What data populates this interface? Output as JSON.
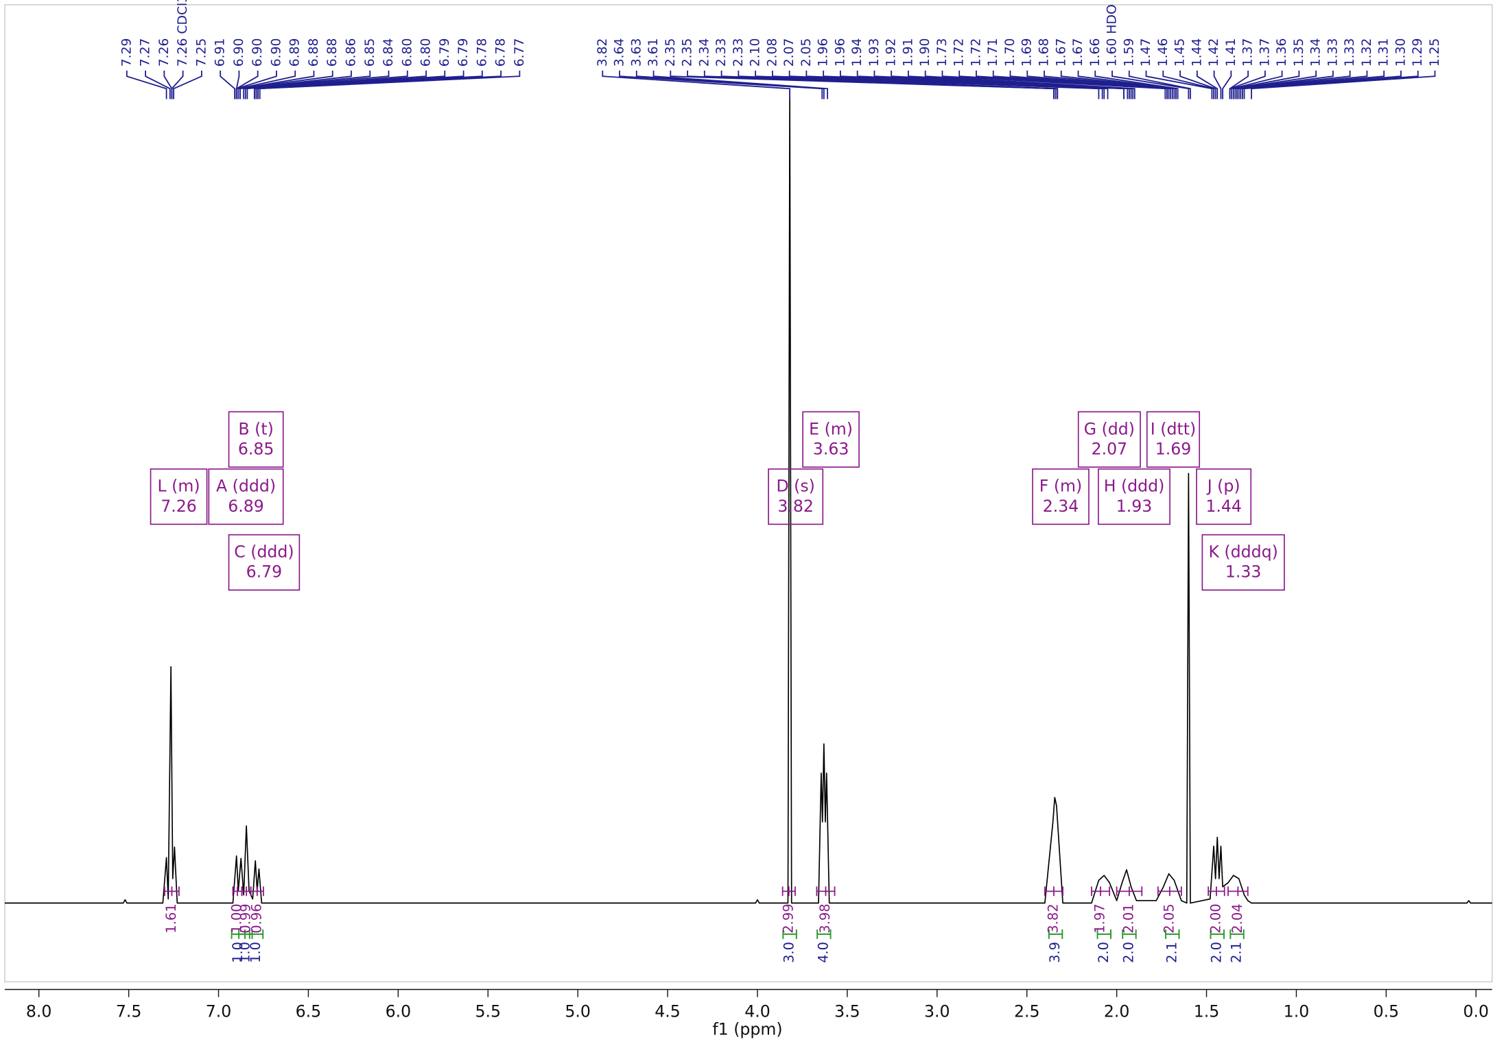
{
  "chart_data": {
    "type": "nmr",
    "x_label": "f1 (ppm)",
    "xlim": [
      8.19,
      -0.09
    ],
    "ylim": [
      -9.7,
      110.6
    ],
    "xticks": [
      {
        "value": 8,
        "label": "8.0"
      },
      7.5,
      {
        "value": 7,
        "label": "7.0"
      },
      6.5,
      {
        "value": 6,
        "label": "6.0"
      },
      5.5,
      {
        "value": 5,
        "label": "5.0"
      },
      4.5,
      {
        "value": 4,
        "label": "4.0"
      },
      3.5,
      {
        "value": 3,
        "label": "3.0"
      },
      2.5,
      {
        "value": 2,
        "label": "2.0"
      },
      1.5,
      {
        "value": 1,
        "label": "1.0"
      },
      0.5,
      {
        "value": 0,
        "label": "0.0"
      }
    ],
    "color": "#000000",
    "x": [
      8.19,
      7.53,
      7.52,
      7.51,
      7.31,
      7.29,
      7.28,
      7.265,
      7.255,
      7.245,
      7.23,
      6.92,
      6.9,
      6.89,
      6.875,
      6.86,
      6.845,
      6.83,
      6.81,
      6.795,
      6.785,
      6.775,
      6.76,
      4.01,
      4.0,
      3.99,
      3.83,
      3.82,
      3.81,
      3.66,
      3.645,
      3.638,
      3.63,
      3.622,
      3.615,
      3.6,
      2.4,
      2.355,
      2.345,
      2.335,
      2.3,
      2.14,
      2.1,
      2.07,
      2.04,
      2.0,
      1.97,
      1.945,
      1.92,
      1.89,
      1.78,
      1.74,
      1.71,
      1.68,
      1.64,
      1.61,
      1.6,
      1.59,
      1.48,
      1.46,
      1.45,
      1.44,
      1.43,
      1.42,
      1.41,
      1.38,
      1.35,
      1.32,
      1.29,
      1.27,
      1.25,
      0.05,
      0.04,
      0.03,
      -0.09
    ],
    "values": [
      0,
      0,
      0.4,
      0,
      0,
      5.6,
      0.5,
      29.1,
      3,
      6.9,
      0,
      0,
      5.8,
      1.5,
      5.5,
      1,
      9.5,
      1.5,
      0.5,
      5.2,
      1.5,
      4.2,
      0,
      0,
      0.4,
      0,
      0,
      100,
      0,
      0,
      16,
      10,
      19.6,
      10,
      16,
      0,
      0,
      10,
      13,
      12,
      0,
      0,
      2.8,
      3.4,
      2.5,
      0.3,
      2.5,
      4.1,
      2,
      0.3,
      0.3,
      2,
      3.6,
      2.8,
      0.3,
      0,
      52.9,
      0,
      0.5,
      7,
      3,
      8.1,
      3,
      7,
      2,
      2.5,
      3.4,
      3,
      1,
      0.3,
      0,
      0,
      0.3,
      0,
      0
    ],
    "peak_list": [
      [
        {
          "value": 7.29,
          "label": "7.29"
        },
        {
          "value": 7.27,
          "label": "7.27"
        },
        {
          "value": 7.26,
          "label": "7.26"
        },
        {
          "value": 7.26,
          "label": "7.26 CDCl3"
        },
        {
          "value": 7.25,
          "label": "7.25"
        },
        {
          "value": 6.91,
          "label": "6.91"
        },
        {
          "value": 6.9,
          "label": "6.90"
        },
        {
          "value": 6.9,
          "label": "6.90"
        },
        {
          "value": 6.9,
          "label": "6.90"
        },
        {
          "value": 6.89,
          "label": "6.89"
        },
        {
          "value": 6.88,
          "label": "6.88"
        },
        {
          "value": 6.88,
          "label": "6.88"
        },
        {
          "value": 6.86,
          "label": "6.86"
        },
        {
          "value": 6.85,
          "label": "6.85"
        },
        {
          "value": 6.84,
          "label": "6.84"
        },
        {
          "value": 6.8,
          "label": "6.80"
        },
        {
          "value": 6.8,
          "label": "6.80"
        },
        {
          "value": 6.79,
          "label": "6.79"
        },
        {
          "value": 6.79,
          "label": "6.79"
        },
        {
          "value": 6.78,
          "label": "6.78"
        },
        {
          "value": 6.78,
          "label": "6.78"
        },
        {
          "value": 6.77,
          "label": "6.77"
        }
      ],
      [
        {
          "value": 3.82,
          "label": "3.82"
        },
        {
          "value": 3.64,
          "label": "3.64"
        },
        {
          "value": 3.63,
          "label": "3.63"
        },
        {
          "value": 3.61,
          "label": "3.61"
        },
        {
          "value": 2.35,
          "label": "2.35"
        },
        {
          "value": 2.35,
          "label": "2.35"
        },
        {
          "value": 2.34,
          "label": "2.34"
        },
        {
          "value": 2.33,
          "label": "2.33"
        },
        {
          "value": 2.33,
          "label": "2.33"
        },
        {
          "value": 2.1,
          "label": "2.10"
        },
        {
          "value": 2.08,
          "label": "2.08"
        },
        {
          "value": 2.07,
          "label": "2.07"
        },
        {
          "value": 2.05,
          "label": "2.05"
        },
        {
          "value": 1.96,
          "label": "1.96"
        },
        {
          "value": 1.96,
          "label": "1.96"
        },
        {
          "value": 1.94,
          "label": "1.94"
        },
        {
          "value": 1.93,
          "label": "1.93"
        },
        {
          "value": 1.92,
          "label": "1.92"
        },
        {
          "value": 1.91,
          "label": "1.91"
        },
        {
          "value": 1.9,
          "label": "1.90"
        },
        {
          "value": 1.73,
          "label": "1.73"
        },
        {
          "value": 1.72,
          "label": "1.72"
        },
        {
          "value": 1.72,
          "label": "1.72"
        },
        {
          "value": 1.71,
          "label": "1.71"
        },
        {
          "value": 1.7,
          "label": "1.70"
        },
        {
          "value": 1.69,
          "label": "1.69"
        },
        {
          "value": 1.68,
          "label": "1.68"
        },
        {
          "value": 1.67,
          "label": "1.67"
        },
        {
          "value": 1.67,
          "label": "1.67"
        },
        {
          "value": 1.66,
          "label": "1.66"
        },
        {
          "value": 1.6,
          "label": "1.60 HDO"
        },
        {
          "value": 1.59,
          "label": "1.59"
        },
        {
          "value": 1.47,
          "label": "1.47"
        },
        {
          "value": 1.46,
          "label": "1.46"
        },
        {
          "value": 1.45,
          "label": "1.45"
        },
        {
          "value": 1.44,
          "label": "1.44"
        },
        {
          "value": 1.42,
          "label": "1.42"
        },
        {
          "value": 1.41,
          "label": "1.41"
        },
        {
          "value": 1.37,
          "label": "1.37"
        },
        {
          "value": 1.37,
          "label": "1.37"
        },
        {
          "value": 1.36,
          "label": "1.36"
        },
        {
          "value": 1.35,
          "label": "1.35"
        },
        {
          "value": 1.34,
          "label": "1.34"
        },
        {
          "value": 1.33,
          "label": "1.33"
        },
        {
          "value": 1.33,
          "label": "1.33"
        },
        {
          "value": 1.32,
          "label": "1.32"
        },
        {
          "value": 1.31,
          "label": "1.31"
        },
        {
          "value": 1.3,
          "label": "1.30"
        },
        {
          "value": 1.29,
          "label": "1.29"
        },
        {
          "value": 1.25,
          "label": "1.25"
        }
      ]
    ],
    "multiplets": [
      {
        "label": "L (m)",
        "shift": 7.26
      },
      {
        "label": "A (ddd)",
        "shift": 6.89,
        "integral": 1,
        "integral_label": "1.0"
      },
      {
        "label": "B (t)",
        "shift": 6.85,
        "integral": 1,
        "integral_label": "1.0"
      },
      {
        "label": "C (ddd)",
        "shift": 6.79,
        "integral": 1,
        "integral_label": "1.0"
      },
      {
        "label": "D (s)",
        "shift": 3.82,
        "integral": 3,
        "integral_label": "3.0"
      },
      {
        "label": "E (m)",
        "shift": 3.63,
        "integral": 4,
        "integral_label": "4.0"
      },
      {
        "label": "F (m)",
        "shift": 2.34,
        "integral": 3.9
      },
      {
        "label": "G (dd)",
        "shift": 2.07,
        "integral": 2,
        "integral_label": "2.0"
      },
      {
        "label": "H (ddd)",
        "shift": 1.93,
        "integral": 2,
        "integral_label": "2.0"
      },
      {
        "label": "I (dtt)",
        "shift": 1.69,
        "integral": 2.1
      },
      {
        "label": "J (p)",
        "shift": 1.44,
        "integral": 2,
        "integral_label": "2.0"
      },
      {
        "label": "K (dddq)",
        "shift": 1.33,
        "integral": 2.1
      }
    ],
    "integrals": [
      {
        "range": [
          7.3,
          7.22
        ],
        "value": 1.61
      },
      {
        "range": [
          6.92,
          6.87
        ],
        "value": 1,
        "value_label": "1.00"
      },
      {
        "range": [
          6.87,
          6.82
        ],
        "value": 0.99
      },
      {
        "range": [
          6.82,
          6.75
        ],
        "value": 0.96
      },
      {
        "range": [
          3.86,
          3.79
        ],
        "value": 2.99
      },
      {
        "range": [
          3.67,
          3.57
        ],
        "value": 3.98
      },
      {
        "range": [
          2.4,
          2.3
        ],
        "value": 3.82
      },
      {
        "range": [
          2.14,
          2.04
        ],
        "value": 1.97
      },
      {
        "range": [
          2.0,
          1.86
        ],
        "value": 2.01
      },
      {
        "range": [
          1.77,
          1.64
        ],
        "value": 2.05
      },
      {
        "range": [
          1.49,
          1.4
        ],
        "value": 2,
        "value_label": "2.00"
      },
      {
        "range": [
          1.38,
          1.27
        ],
        "value": 2.04
      }
    ]
  }
}
